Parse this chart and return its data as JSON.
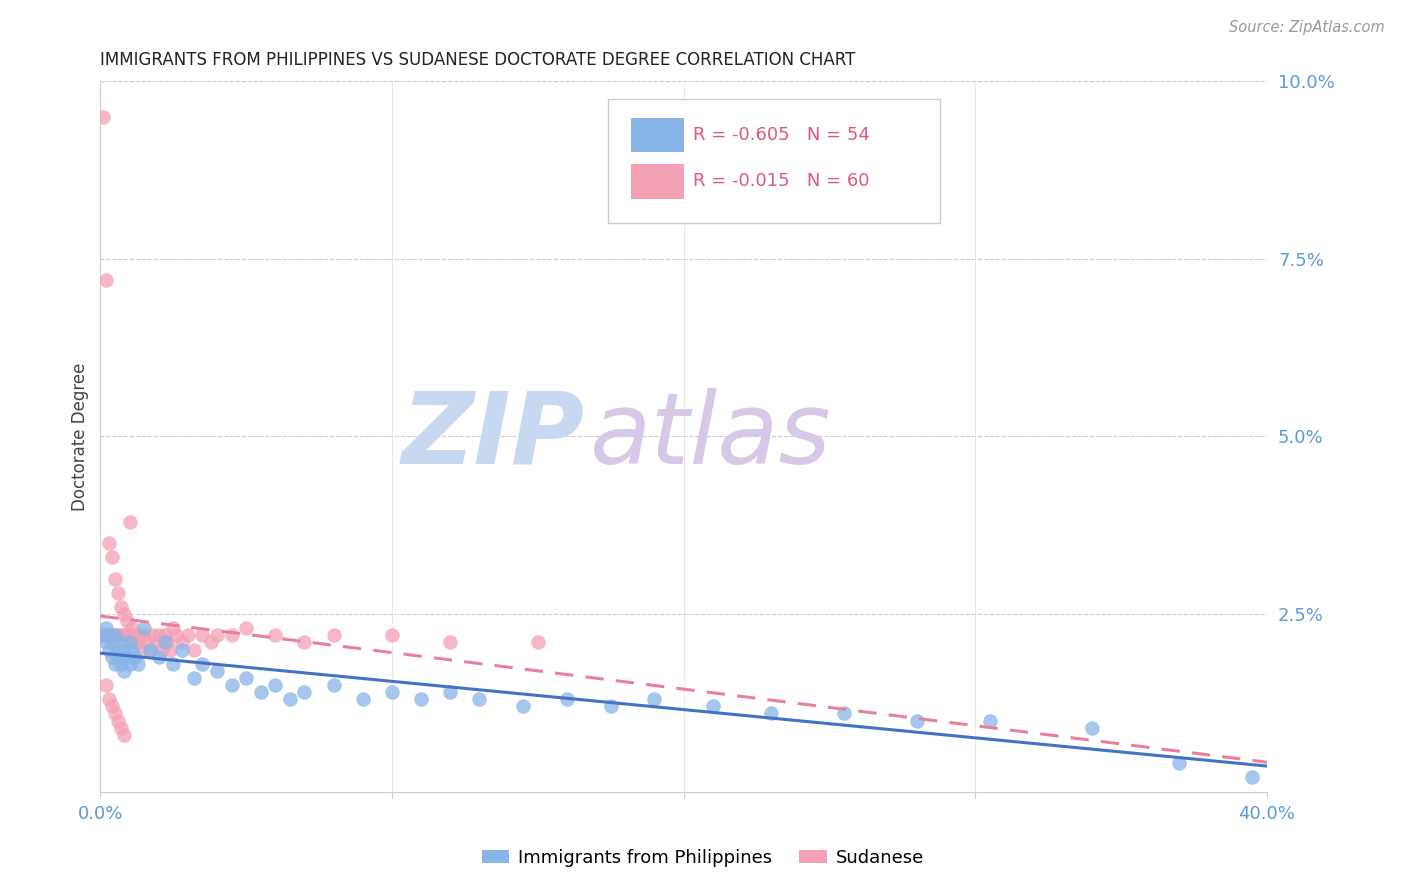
{
  "title": "IMMIGRANTS FROM PHILIPPINES VS SUDANESE DOCTORATE DEGREE CORRELATION CHART",
  "source": "Source: ZipAtlas.com",
  "ylabel": "Doctorate Degree",
  "xlim": [
    0.0,
    0.4
  ],
  "ylim": [
    0.0,
    0.1
  ],
  "legend_r_philippines": "-0.605",
  "legend_n_philippines": "54",
  "legend_r_sudanese": "-0.015",
  "legend_n_sudanese": "60",
  "color_philippines": "#89b4e8",
  "color_sudanese": "#f4a0b5",
  "color_philippines_line": "#4472c4",
  "color_sudanese_line": "#e8809a",
  "color_axis_labels": "#5b9bd5",
  "watermark_zip": "ZIP",
  "watermark_atlas": "atlas",
  "watermark_color_zip": "#c8d8f0",
  "watermark_color_atlas": "#d8c8e8",
  "philippines_x": [
    0.001,
    0.002,
    0.002,
    0.003,
    0.003,
    0.004,
    0.004,
    0.005,
    0.005,
    0.006,
    0.006,
    0.007,
    0.007,
    0.008,
    0.008,
    0.009,
    0.01,
    0.01,
    0.011,
    0.012,
    0.013,
    0.015,
    0.017,
    0.02,
    0.022,
    0.025,
    0.028,
    0.032,
    0.035,
    0.04,
    0.045,
    0.05,
    0.055,
    0.06,
    0.065,
    0.07,
    0.08,
    0.09,
    0.1,
    0.11,
    0.12,
    0.13,
    0.145,
    0.16,
    0.175,
    0.19,
    0.21,
    0.23,
    0.255,
    0.28,
    0.305,
    0.34,
    0.37,
    0.395
  ],
  "philippines_y": [
    0.022,
    0.023,
    0.021,
    0.02,
    0.022,
    0.019,
    0.021,
    0.018,
    0.022,
    0.02,
    0.019,
    0.021,
    0.018,
    0.02,
    0.017,
    0.019,
    0.021,
    0.018,
    0.02,
    0.019,
    0.018,
    0.023,
    0.02,
    0.019,
    0.021,
    0.018,
    0.02,
    0.016,
    0.018,
    0.017,
    0.015,
    0.016,
    0.014,
    0.015,
    0.013,
    0.014,
    0.015,
    0.013,
    0.014,
    0.013,
    0.014,
    0.013,
    0.012,
    0.013,
    0.012,
    0.013,
    0.012,
    0.011,
    0.011,
    0.01,
    0.01,
    0.009,
    0.004,
    0.002
  ],
  "sudanese_x": [
    0.001,
    0.001,
    0.002,
    0.002,
    0.002,
    0.003,
    0.003,
    0.003,
    0.004,
    0.004,
    0.004,
    0.005,
    0.005,
    0.005,
    0.006,
    0.006,
    0.006,
    0.007,
    0.007,
    0.007,
    0.008,
    0.008,
    0.008,
    0.009,
    0.009,
    0.01,
    0.01,
    0.011,
    0.011,
    0.012,
    0.012,
    0.013,
    0.013,
    0.014,
    0.015,
    0.016,
    0.017,
    0.018,
    0.019,
    0.02,
    0.021,
    0.022,
    0.023,
    0.024,
    0.025,
    0.026,
    0.028,
    0.03,
    0.032,
    0.035,
    0.038,
    0.04,
    0.045,
    0.05,
    0.06,
    0.07,
    0.08,
    0.1,
    0.12,
    0.15
  ],
  "sudanese_y": [
    0.095,
    0.022,
    0.072,
    0.022,
    0.015,
    0.035,
    0.022,
    0.013,
    0.033,
    0.022,
    0.012,
    0.03,
    0.022,
    0.011,
    0.028,
    0.022,
    0.01,
    0.026,
    0.022,
    0.009,
    0.025,
    0.022,
    0.008,
    0.024,
    0.022,
    0.038,
    0.022,
    0.023,
    0.022,
    0.021,
    0.022,
    0.021,
    0.022,
    0.02,
    0.022,
    0.021,
    0.02,
    0.022,
    0.021,
    0.022,
    0.02,
    0.022,
    0.021,
    0.02,
    0.023,
    0.022,
    0.021,
    0.022,
    0.02,
    0.022,
    0.021,
    0.022,
    0.022,
    0.023,
    0.022,
    0.021,
    0.022,
    0.022,
    0.021,
    0.021
  ]
}
